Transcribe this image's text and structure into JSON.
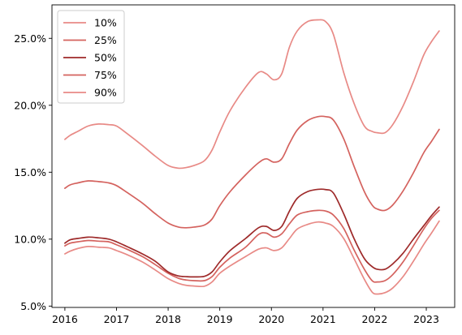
{
  "chart_data": {
    "type": "line",
    "title": "",
    "xlabel": "",
    "ylabel": "",
    "xlim": [
      2015.75,
      2023.55
    ],
    "ylim": [
      0.049,
      0.275
    ],
    "xticks": [
      2016,
      2017,
      2018,
      2019,
      2020,
      2021,
      2022,
      2023
    ],
    "xtick_labels": [
      "2016",
      "2017",
      "2018",
      "2019",
      "2020",
      "2021",
      "2022",
      "2023"
    ],
    "yticks": [
      0.05,
      0.1,
      0.15,
      0.2,
      0.25
    ],
    "ytick_labels": [
      "5.0%",
      "10.0%",
      "15.0%",
      "20.0%",
      "25.0%"
    ],
    "legend_position": "top-left",
    "grid": false,
    "x": [
      2016.0,
      2016.1,
      2016.25,
      2016.45,
      2016.65,
      2016.85,
      2017.0,
      2017.2,
      2017.5,
      2017.75,
      2018.0,
      2018.2,
      2018.35,
      2018.5,
      2018.7,
      2018.85,
      2019.0,
      2019.2,
      2019.5,
      2019.75,
      2019.9,
      2020.05,
      2020.2,
      2020.35,
      2020.5,
      2020.7,
      2020.9,
      2021.05,
      2021.2,
      2021.4,
      2021.6,
      2021.8,
      2021.95,
      2022.05,
      2022.2,
      2022.35,
      2022.55,
      2022.75,
      2022.95,
      2023.1,
      2023.25
    ],
    "series": [
      {
        "name": "10%",
        "color": "#e88a86",
        "values": [
          0.089,
          0.091,
          0.093,
          0.0945,
          0.094,
          0.0935,
          0.0915,
          0.0885,
          0.083,
          0.077,
          0.0705,
          0.067,
          0.0655,
          0.065,
          0.0648,
          0.068,
          0.0745,
          0.08,
          0.087,
          0.0925,
          0.0935,
          0.0915,
          0.0935,
          0.1005,
          0.1075,
          0.111,
          0.1128,
          0.112,
          0.1095,
          0.1005,
          0.0855,
          0.07,
          0.0605,
          0.059,
          0.06,
          0.0635,
          0.072,
          0.0835,
          0.096,
          0.1045,
          0.1135
        ]
      },
      {
        "name": "25%",
        "color": "#d4625e",
        "values": [
          0.095,
          0.097,
          0.098,
          0.099,
          0.0985,
          0.098,
          0.0958,
          0.0925,
          0.087,
          0.081,
          0.0745,
          0.0708,
          0.0695,
          0.069,
          0.069,
          0.072,
          0.079,
          0.086,
          0.094,
          0.1035,
          0.1045,
          0.1015,
          0.104,
          0.1115,
          0.118,
          0.1205,
          0.1215,
          0.121,
          0.118,
          0.108,
          0.092,
          0.0775,
          0.069,
          0.068,
          0.069,
          0.0735,
          0.083,
          0.095,
          0.1075,
          0.1155,
          0.1215
        ]
      },
      {
        "name": "50%",
        "color": "#9e2a2a",
        "values": [
          0.097,
          0.0995,
          0.1005,
          0.1015,
          0.101,
          0.1,
          0.098,
          0.0945,
          0.089,
          0.0835,
          0.0755,
          0.0725,
          0.072,
          0.0718,
          0.0722,
          0.0755,
          0.083,
          0.0915,
          0.1005,
          0.1085,
          0.1095,
          0.1065,
          0.1095,
          0.121,
          0.1305,
          0.1355,
          0.1372,
          0.137,
          0.1345,
          0.119,
          0.1005,
          0.0855,
          0.0795,
          0.0775,
          0.0775,
          0.0815,
          0.0895,
          0.1,
          0.11,
          0.1175,
          0.124
        ]
      },
      {
        "name": "75%",
        "color": "#d4625e",
        "values": [
          0.138,
          0.1405,
          0.142,
          0.1435,
          0.143,
          0.142,
          0.14,
          0.135,
          0.127,
          0.119,
          0.112,
          0.109,
          0.1085,
          0.109,
          0.1105,
          0.115,
          0.125,
          0.1355,
          0.148,
          0.157,
          0.16,
          0.1575,
          0.16,
          0.1715,
          0.1815,
          0.1885,
          0.1915,
          0.1915,
          0.189,
          0.175,
          0.1545,
          0.1355,
          0.1255,
          0.1225,
          0.1215,
          0.1255,
          0.136,
          0.1495,
          0.1645,
          0.173,
          0.182
        ]
      },
      {
        "name": "90%",
        "color": "#e88a86",
        "values": [
          0.1745,
          0.1775,
          0.1805,
          0.1845,
          0.186,
          0.1855,
          0.1845,
          0.179,
          0.17,
          0.162,
          0.155,
          0.153,
          0.1535,
          0.155,
          0.1585,
          0.1665,
          0.18,
          0.196,
          0.2135,
          0.2245,
          0.2235,
          0.219,
          0.2235,
          0.2435,
          0.2555,
          0.2625,
          0.2638,
          0.2625,
          0.253,
          0.2245,
          0.2015,
          0.1845,
          0.1805,
          0.1795,
          0.1795,
          0.1855,
          0.1995,
          0.2175,
          0.2375,
          0.2475,
          0.2555
        ]
      }
    ]
  }
}
